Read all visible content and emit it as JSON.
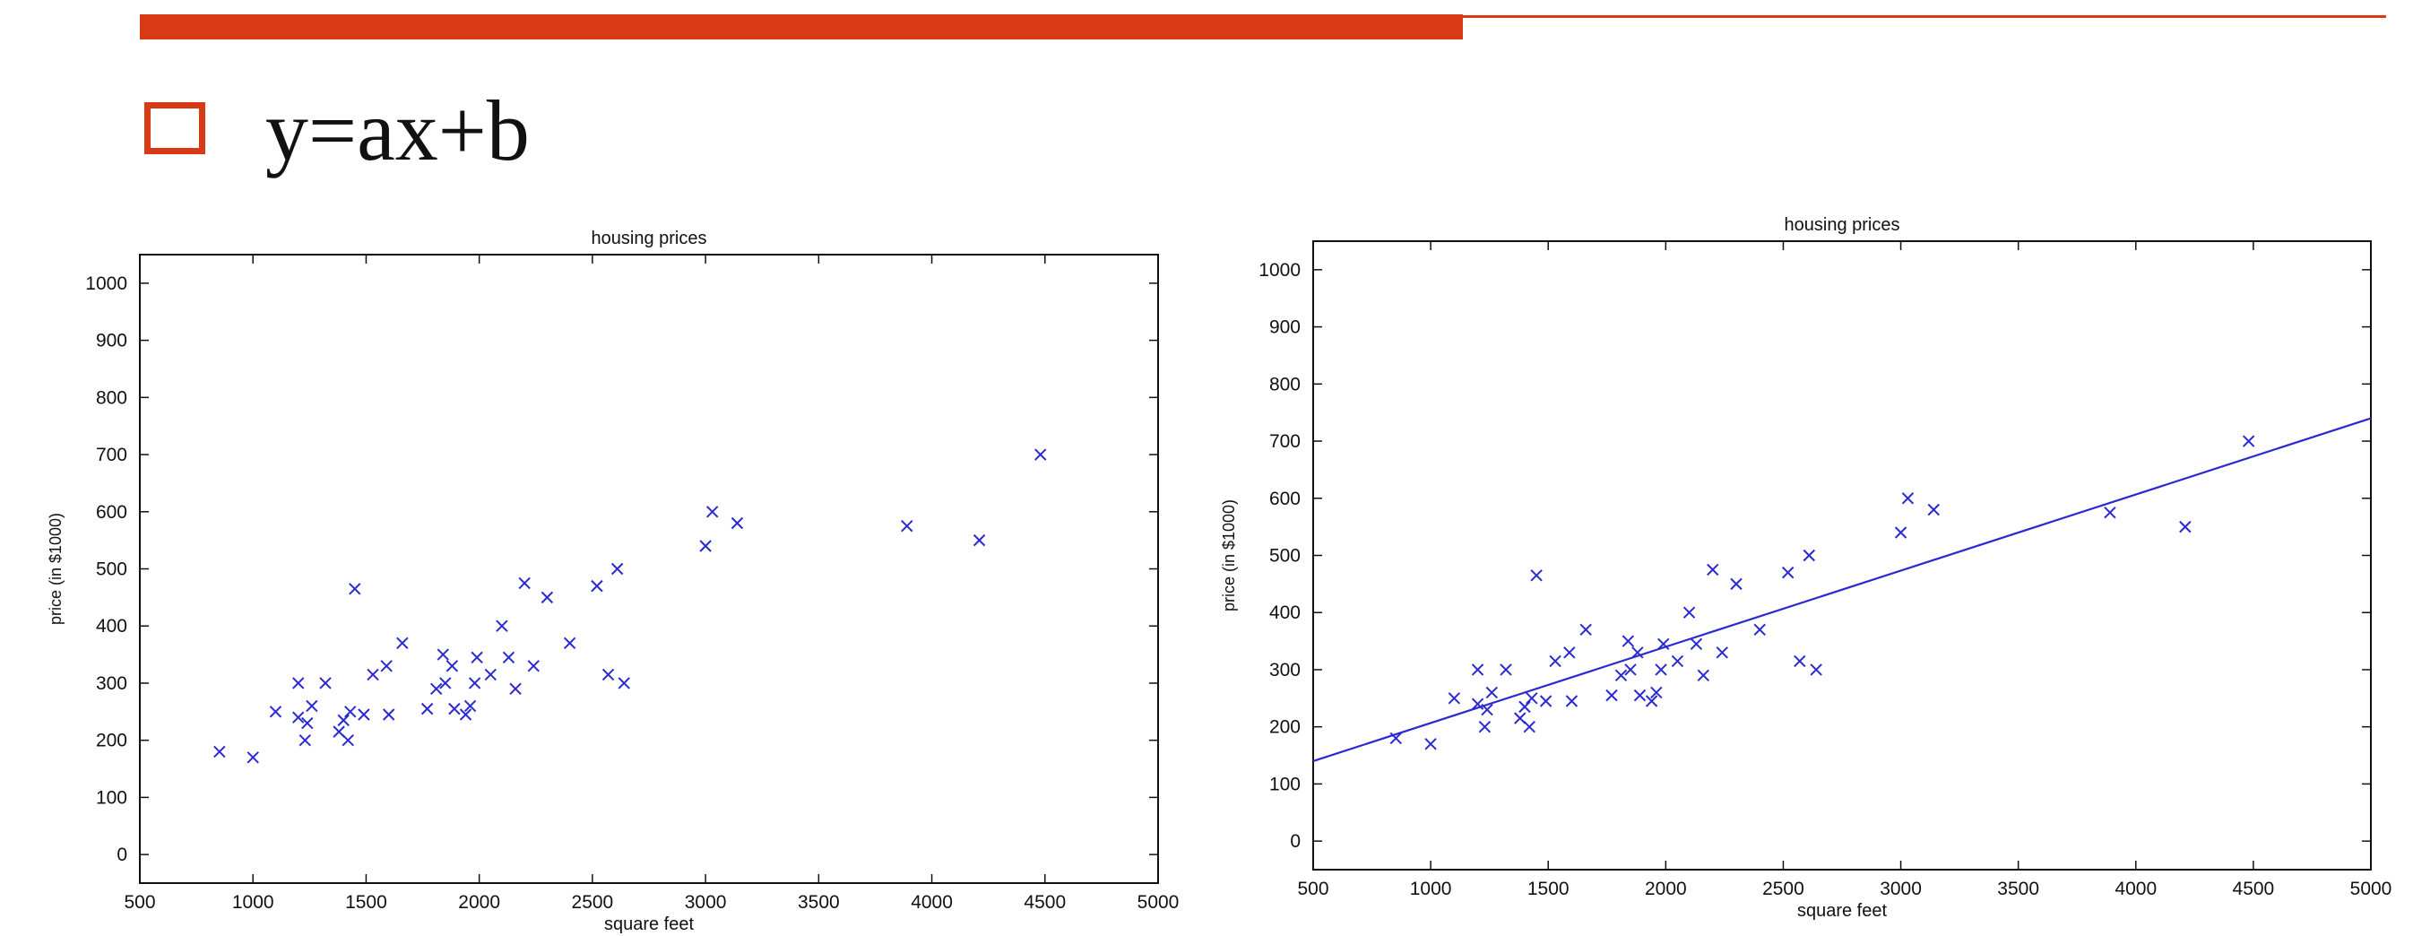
{
  "slide": {
    "heading": "y=ax+b",
    "accent_color": "#d93a16"
  },
  "chart_data": [
    {
      "type": "scatter",
      "title": "housing prices",
      "xlabel": "square feet",
      "ylabel": "price (in $1000)",
      "xlim": [
        500,
        5000
      ],
      "ylim": [
        -50,
        1050
      ],
      "xticks": [
        500,
        1000,
        1500,
        2000,
        2500,
        3000,
        3500,
        4000,
        4500,
        5000
      ],
      "yticks": [
        0,
        100,
        200,
        300,
        400,
        500,
        600,
        700,
        800,
        900,
        1000
      ],
      "marker": "x",
      "color": "#2a2ad0",
      "grid": false,
      "series": [
        {
          "points": [
            [
              852,
              180
            ],
            [
              1000,
              170
            ],
            [
              1100,
              250
            ],
            [
              1200,
              300
            ],
            [
              1200,
              240
            ],
            [
              1230,
              200
            ],
            [
              1240,
              230
            ],
            [
              1260,
              260
            ],
            [
              1320,
              300
            ],
            [
              1380,
              215
            ],
            [
              1400,
              235
            ],
            [
              1420,
              200
            ],
            [
              1430,
              250
            ],
            [
              1450,
              465
            ],
            [
              1490,
              245
            ],
            [
              1530,
              315
            ],
            [
              1590,
              330
            ],
            [
              1600,
              245
            ],
            [
              1660,
              370
            ],
            [
              1770,
              255
            ],
            [
              1810,
              290
            ],
            [
              1840,
              350
            ],
            [
              1850,
              300
            ],
            [
              1880,
              330
            ],
            [
              1890,
              255
            ],
            [
              1940,
              245
            ],
            [
              1960,
              260
            ],
            [
              1980,
              300
            ],
            [
              1990,
              345
            ],
            [
              2050,
              315
            ],
            [
              2100,
              400
            ],
            [
              2130,
              345
            ],
            [
              2160,
              290
            ],
            [
              2200,
              475
            ],
            [
              2240,
              330
            ],
            [
              2300,
              450
            ],
            [
              2400,
              370
            ],
            [
              2520,
              470
            ],
            [
              2570,
              315
            ],
            [
              2610,
              500
            ],
            [
              2640,
              300
            ],
            [
              3000,
              540
            ],
            [
              3030,
              600
            ],
            [
              3140,
              580
            ],
            [
              3890,
              575
            ],
            [
              4210,
              550
            ],
            [
              4480,
              700
            ]
          ]
        }
      ]
    },
    {
      "type": "scatter",
      "title": "housing prices",
      "xlabel": "square feet",
      "ylabel": "price (in $1000)",
      "xlim": [
        500,
        5000
      ],
      "ylim": [
        -50,
        1050
      ],
      "xticks": [
        500,
        1000,
        1500,
        2000,
        2500,
        3000,
        3500,
        4000,
        4500,
        5000
      ],
      "yticks": [
        0,
        100,
        200,
        300,
        400,
        500,
        600,
        700,
        800,
        900,
        1000
      ],
      "marker": "x",
      "color": "#2a2ad0",
      "grid": false,
      "series": [
        {
          "points": [
            [
              852,
              180
            ],
            [
              1000,
              170
            ],
            [
              1100,
              250
            ],
            [
              1200,
              300
            ],
            [
              1200,
              240
            ],
            [
              1230,
              200
            ],
            [
              1240,
              230
            ],
            [
              1260,
              260
            ],
            [
              1320,
              300
            ],
            [
              1380,
              215
            ],
            [
              1400,
              235
            ],
            [
              1420,
              200
            ],
            [
              1430,
              250
            ],
            [
              1450,
              465
            ],
            [
              1490,
              245
            ],
            [
              1530,
              315
            ],
            [
              1590,
              330
            ],
            [
              1600,
              245
            ],
            [
              1660,
              370
            ],
            [
              1770,
              255
            ],
            [
              1810,
              290
            ],
            [
              1840,
              350
            ],
            [
              1850,
              300
            ],
            [
              1880,
              330
            ],
            [
              1890,
              255
            ],
            [
              1940,
              245
            ],
            [
              1960,
              260
            ],
            [
              1980,
              300
            ],
            [
              1990,
              345
            ],
            [
              2050,
              315
            ],
            [
              2100,
              400
            ],
            [
              2130,
              345
            ],
            [
              2160,
              290
            ],
            [
              2200,
              475
            ],
            [
              2240,
              330
            ],
            [
              2300,
              450
            ],
            [
              2400,
              370
            ],
            [
              2520,
              470
            ],
            [
              2570,
              315
            ],
            [
              2610,
              500
            ],
            [
              2640,
              300
            ],
            [
              3000,
              540
            ],
            [
              3030,
              600
            ],
            [
              3140,
              580
            ],
            [
              3890,
              575
            ],
            [
              4210,
              550
            ],
            [
              4480,
              700
            ]
          ]
        }
      ],
      "fit_line": {
        "x": [
          500,
          5000
        ],
        "y": [
          140,
          740
        ]
      }
    }
  ]
}
